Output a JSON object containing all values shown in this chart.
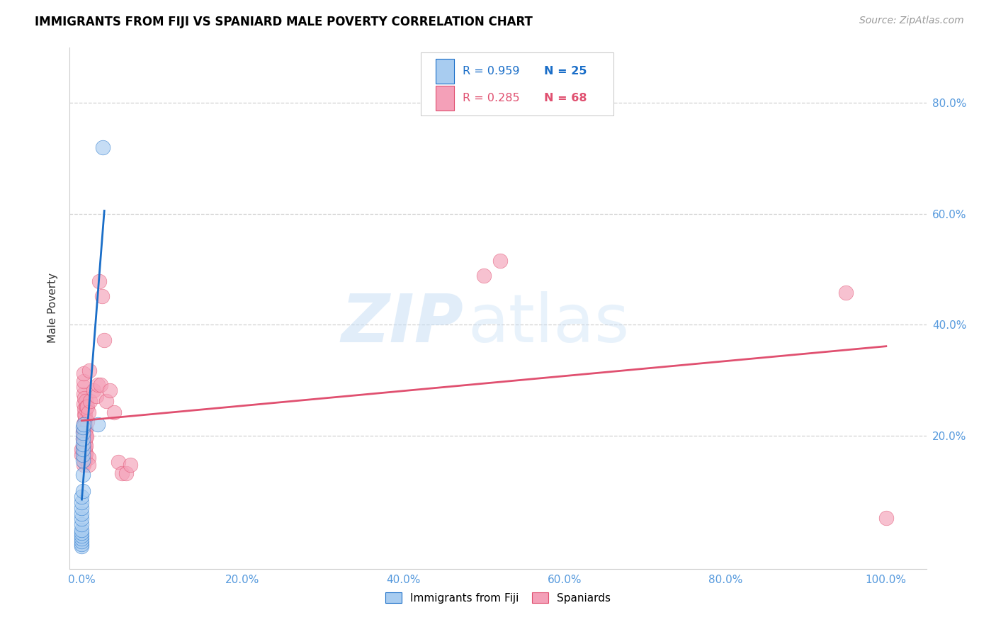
{
  "title": "IMMIGRANTS FROM FIJI VS SPANIARD MALE POVERTY CORRELATION CHART",
  "source": "Source: ZipAtlas.com",
  "ylabel_label": "Male Poverty",
  "legend_label1": "Immigrants from Fiji",
  "legend_label2": "Spaniards",
  "r1": "R = 0.959",
  "n1": "N = 25",
  "r2": "R = 0.285",
  "n2": "N = 68",
  "color_fiji": "#a8ccf0",
  "color_fiji_line": "#1a6ec8",
  "color_spain": "#f4a0b8",
  "color_spain_line": "#e05070",
  "fiji_points": [
    [
      0.0,
      0.0
    ],
    [
      0.0,
      0.005
    ],
    [
      0.0,
      0.01
    ],
    [
      0.0,
      0.015
    ],
    [
      0.0,
      0.02
    ],
    [
      0.0,
      0.025
    ],
    [
      0.0,
      0.03
    ],
    [
      0.0,
      0.04
    ],
    [
      0.0,
      0.05
    ],
    [
      0.0,
      0.06
    ],
    [
      0.0,
      0.07
    ],
    [
      0.0,
      0.08
    ],
    [
      0.0,
      0.09
    ],
    [
      0.001,
      0.1
    ],
    [
      0.001,
      0.13
    ],
    [
      0.001,
      0.155
    ],
    [
      0.001,
      0.165
    ],
    [
      0.001,
      0.175
    ],
    [
      0.001,
      0.185
    ],
    [
      0.001,
      0.195
    ],
    [
      0.001,
      0.205
    ],
    [
      0.001,
      0.215
    ],
    [
      0.002,
      0.22
    ],
    [
      0.02,
      0.22
    ],
    [
      0.026,
      0.72
    ]
  ],
  "spain_points": [
    [
      0.0,
      0.165
    ],
    [
      0.0,
      0.175
    ],
    [
      0.001,
      0.18
    ],
    [
      0.001,
      0.195
    ],
    [
      0.001,
      0.208
    ],
    [
      0.002,
      0.148
    ],
    [
      0.002,
      0.165
    ],
    [
      0.002,
      0.182
    ],
    [
      0.002,
      0.195
    ],
    [
      0.002,
      0.21
    ],
    [
      0.002,
      0.222
    ],
    [
      0.002,
      0.258
    ],
    [
      0.002,
      0.275
    ],
    [
      0.002,
      0.288
    ],
    [
      0.002,
      0.298
    ],
    [
      0.002,
      0.312
    ],
    [
      0.003,
      0.152
    ],
    [
      0.003,
      0.162
    ],
    [
      0.003,
      0.172
    ],
    [
      0.003,
      0.178
    ],
    [
      0.003,
      0.198
    ],
    [
      0.003,
      0.208
    ],
    [
      0.003,
      0.218
    ],
    [
      0.003,
      0.238
    ],
    [
      0.003,
      0.248
    ],
    [
      0.003,
      0.268
    ],
    [
      0.004,
      0.158
    ],
    [
      0.004,
      0.168
    ],
    [
      0.004,
      0.178
    ],
    [
      0.004,
      0.188
    ],
    [
      0.004,
      0.198
    ],
    [
      0.004,
      0.208
    ],
    [
      0.004,
      0.218
    ],
    [
      0.004,
      0.228
    ],
    [
      0.004,
      0.238
    ],
    [
      0.005,
      0.168
    ],
    [
      0.005,
      0.182
    ],
    [
      0.005,
      0.198
    ],
    [
      0.005,
      0.212
    ],
    [
      0.005,
      0.248
    ],
    [
      0.005,
      0.262
    ],
    [
      0.006,
      0.198
    ],
    [
      0.006,
      0.252
    ],
    [
      0.007,
      0.225
    ],
    [
      0.007,
      0.252
    ],
    [
      0.008,
      0.242
    ],
    [
      0.008,
      0.16
    ],
    [
      0.008,
      0.148
    ],
    [
      0.009,
      0.318
    ],
    [
      0.01,
      0.262
    ],
    [
      0.015,
      0.282
    ],
    [
      0.018,
      0.272
    ],
    [
      0.02,
      0.292
    ],
    [
      0.022,
      0.478
    ],
    [
      0.023,
      0.292
    ],
    [
      0.025,
      0.452
    ],
    [
      0.028,
      0.372
    ],
    [
      0.03,
      0.262
    ],
    [
      0.035,
      0.282
    ],
    [
      0.04,
      0.242
    ],
    [
      0.045,
      0.152
    ],
    [
      0.05,
      0.132
    ],
    [
      0.055,
      0.132
    ],
    [
      0.06,
      0.148
    ],
    [
      0.5,
      0.488
    ],
    [
      0.52,
      0.515
    ],
    [
      0.95,
      0.458
    ],
    [
      1.0,
      0.052
    ]
  ],
  "xlim": [
    -0.015,
    1.05
  ],
  "ylim": [
    -0.04,
    0.9
  ],
  "xticks": [
    0.0,
    0.2,
    0.4,
    0.6,
    0.8,
    1.0
  ],
  "yticks": [
    0.2,
    0.4,
    0.6,
    0.8
  ]
}
